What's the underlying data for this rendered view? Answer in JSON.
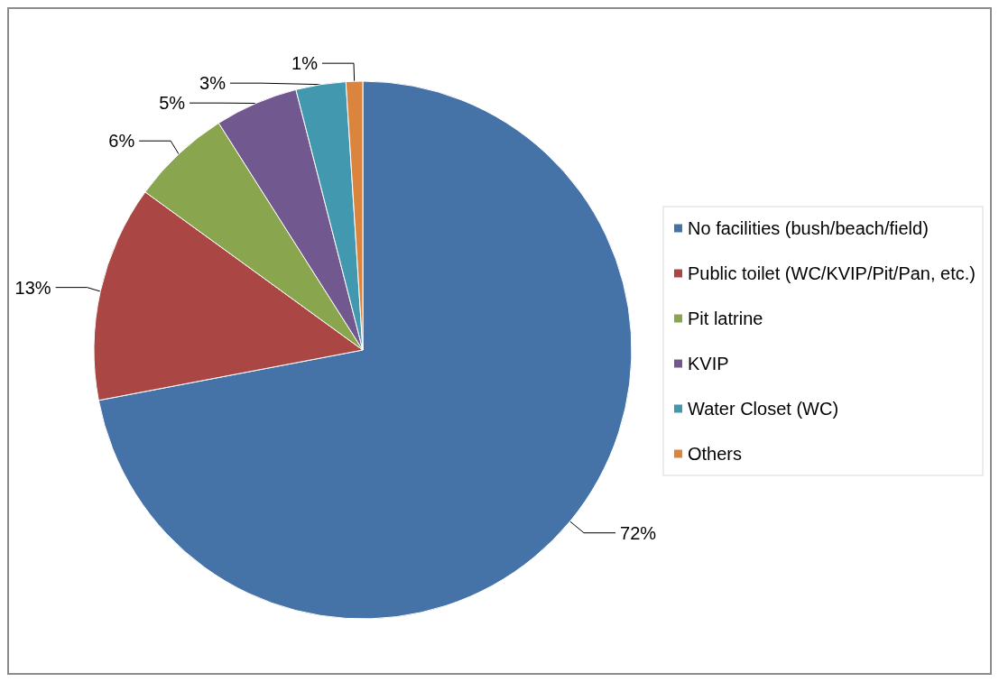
{
  "chart_data": {
    "type": "pie",
    "categories": [
      "No facilities (bush/beach/field)",
      "Public toilet (WC/KVIP/Pit/Pan, etc.)",
      "Pit latrine",
      "KVIP",
      "Water Closet (WC)",
      "Others"
    ],
    "values": [
      72,
      13,
      6,
      5,
      3,
      1
    ],
    "value_labels": [
      "72%",
      "13%",
      "6%",
      "5%",
      "3%",
      "1%"
    ],
    "colors": [
      "#4572a7",
      "#aa4643",
      "#89a54e",
      "#71588f",
      "#4198af",
      "#db843d"
    ],
    "legend": "right"
  }
}
